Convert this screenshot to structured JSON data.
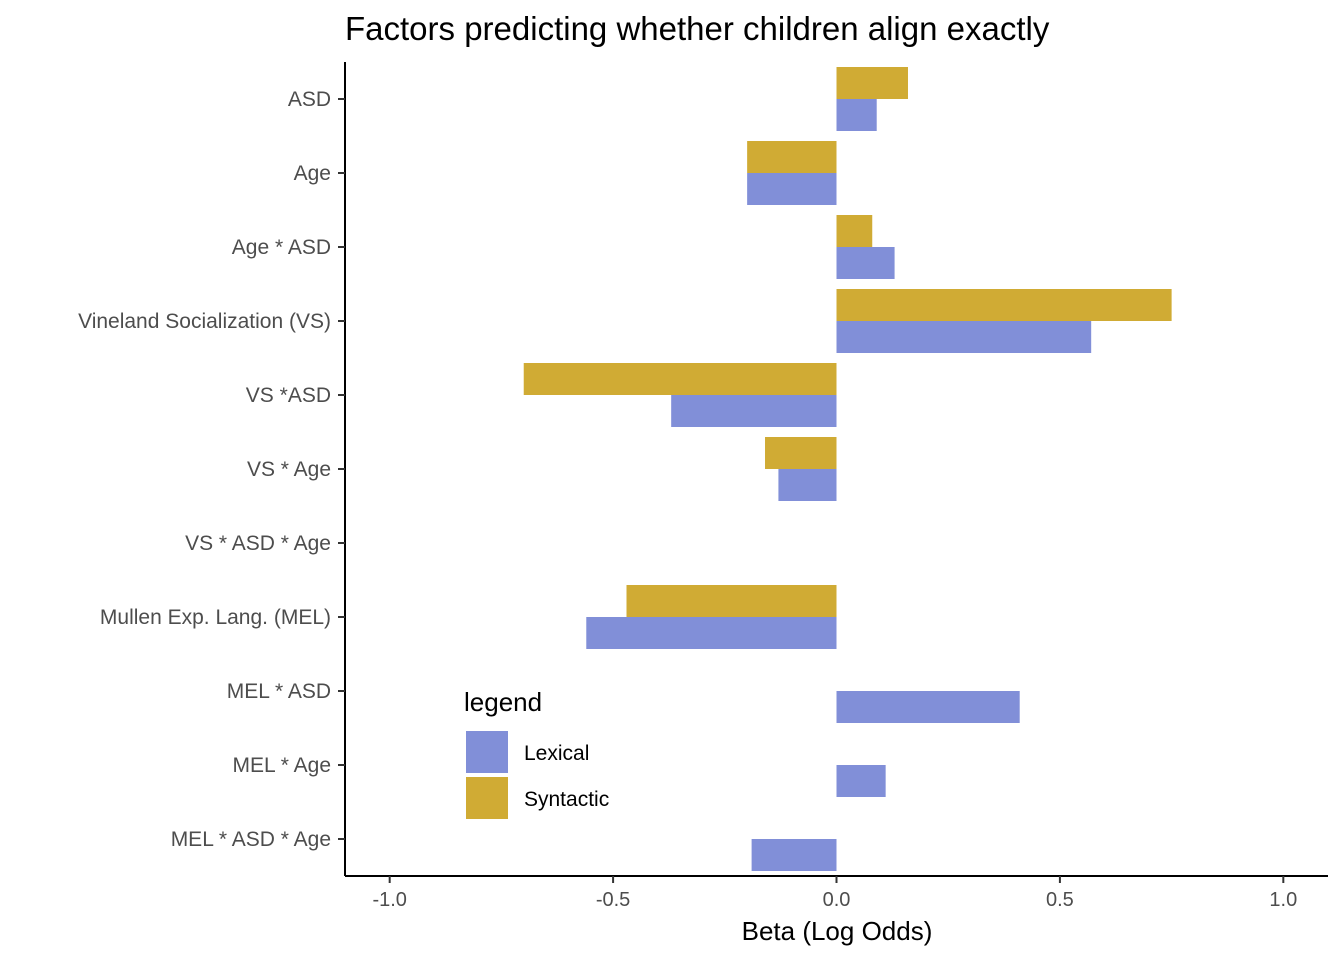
{
  "chart_data": {
    "type": "bar",
    "orientation": "horizontal",
    "title": "Factors predicting whether children align exactly",
    "xlabel": "Beta (Log Odds)",
    "ylabel": "",
    "xlim": [
      -1.1,
      1.1
    ],
    "xticks": [
      -1.0,
      -0.5,
      0.0,
      0.5,
      1.0
    ],
    "xtick_labels": [
      "-1.0",
      "-0.5",
      "0.0",
      "0.5",
      "1.0"
    ],
    "grid": false,
    "legend_position": "bottom-left",
    "categories": [
      "ASD",
      "Age ",
      "Age * ASD",
      "Vineland Socialization (VS)",
      "VS *ASD",
      "VS * Age",
      "VS * ASD * Age",
      "Mullen Exp. Lang. (MEL)",
      "MEL * ASD",
      "MEL * Age",
      "MEL * ASD * Age "
    ],
    "series": [
      {
        "name": "Lexical",
        "color": "#818fd8",
        "values": [
          0.09,
          -0.2,
          0.13,
          0.57,
          -0.37,
          -0.13,
          null,
          -0.56,
          0.41,
          0.11,
          -0.19
        ]
      },
      {
        "name": "Syntactic",
        "color": "#d0ab34",
        "values": [
          0.16,
          -0.2,
          0.08,
          0.75,
          -0.7,
          -0.16,
          null,
          -0.47,
          null,
          null,
          null
        ]
      }
    ],
    "legend_title": "legend"
  }
}
